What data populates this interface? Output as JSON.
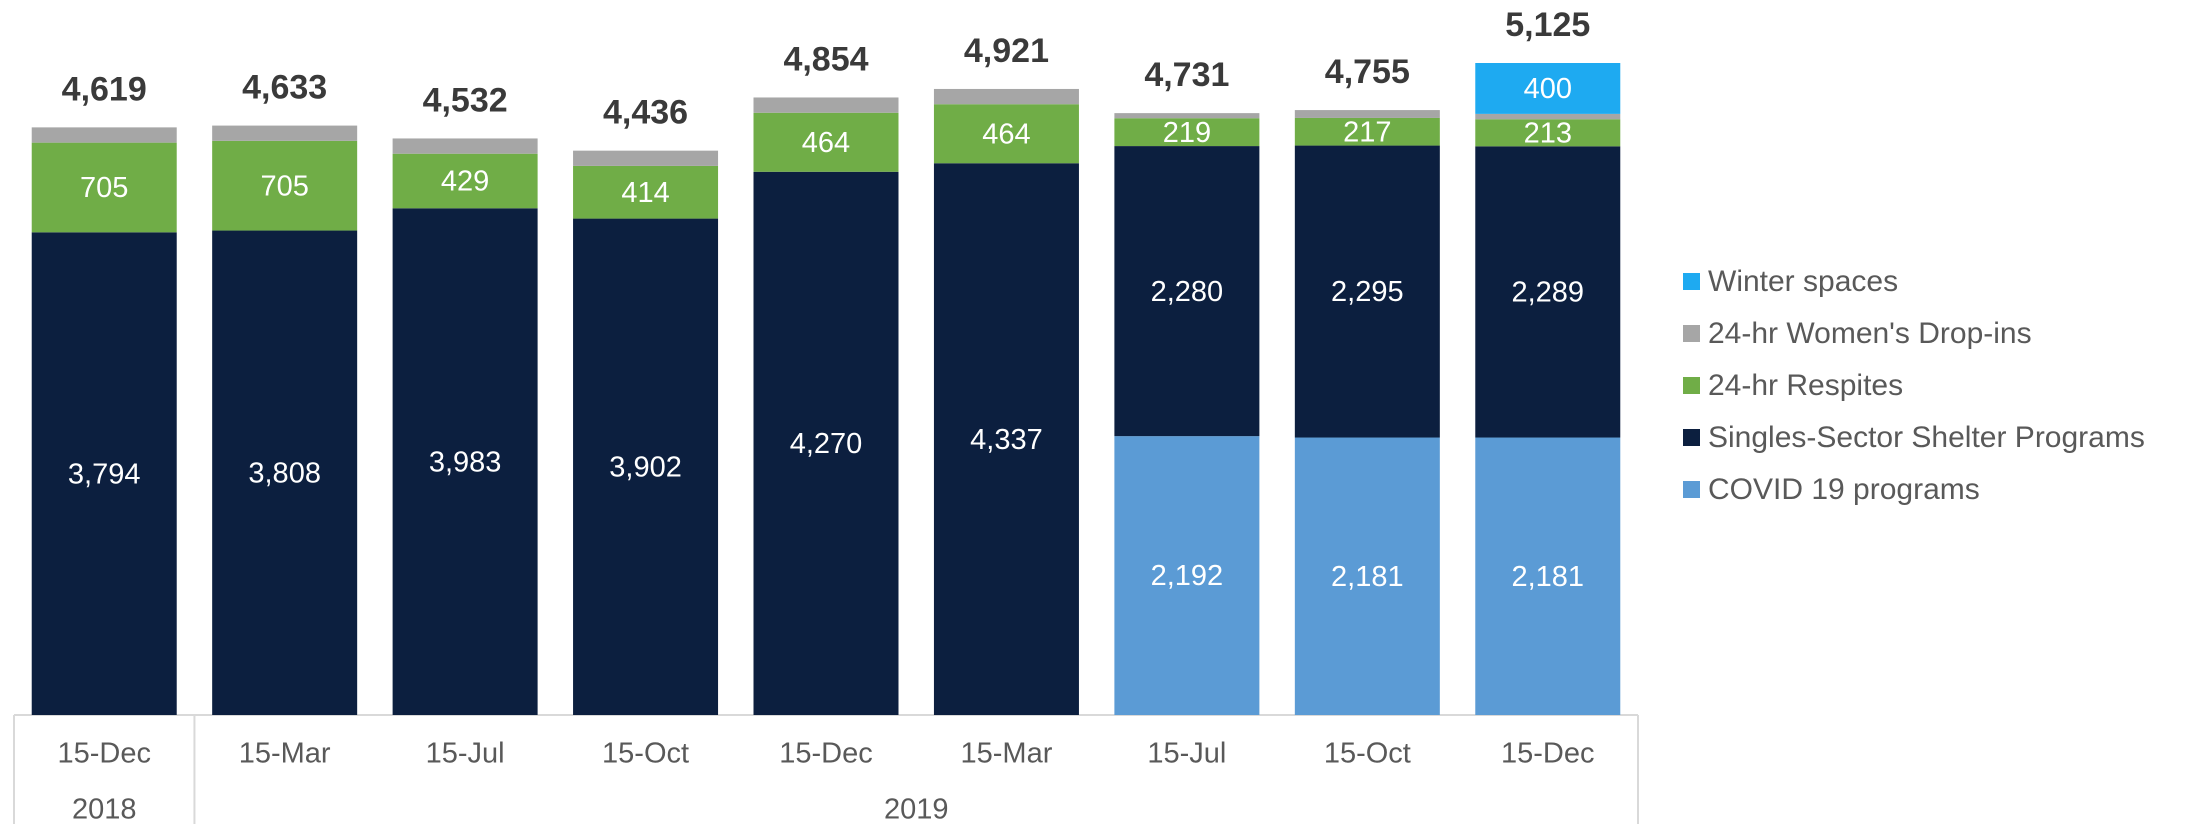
{
  "chart_data": {
    "type": "stacked_bar",
    "categories": [
      "15-Dec",
      "15-Mar",
      "15-Jul",
      "15-Oct",
      "15-Dec",
      "15-Mar",
      "15-Jul",
      "15-Oct",
      "15-Dec"
    ],
    "x_groups": [
      {
        "label": "2018",
        "span": 1
      },
      {
        "label": "2019",
        "span": 8
      }
    ],
    "series": [
      {
        "name": "COVID 19 programs",
        "color": "#5b9bd5",
        "values": [
          null,
          null,
          null,
          null,
          null,
          null,
          2192,
          2181,
          2181
        ],
        "value_labels": [
          null,
          null,
          null,
          null,
          null,
          null,
          "2,192",
          "2,181",
          "2,181"
        ]
      },
      {
        "name": "Singles-Sector Shelter Programs",
        "color": "#0c1f3f",
        "values": [
          3794,
          3808,
          3983,
          3902,
          4270,
          4337,
          2280,
          2295,
          2289
        ],
        "value_labels": [
          "3,794",
          "3,808",
          "3,983",
          "3,902",
          "4,270",
          "4,337",
          "2,280",
          "2,295",
          "2,289"
        ]
      },
      {
        "name": "24-hr Respites",
        "color": "#70ad47",
        "values": [
          705,
          705,
          429,
          414,
          464,
          464,
          219,
          217,
          213
        ],
        "value_labels": [
          "705",
          "705",
          "429",
          "414",
          "464",
          "464",
          "219",
          "217",
          "213"
        ]
      },
      {
        "name": "24-hr Women's Drop-ins",
        "color": "#a6a6a6",
        "values": [
          120,
          120,
          120,
          120,
          120,
          120,
          40,
          62,
          42
        ]
      },
      {
        "name": "Winter spaces",
        "color": "#1eaaf1",
        "values": [
          null,
          null,
          null,
          null,
          null,
          null,
          null,
          null,
          400
        ],
        "value_labels": [
          null,
          null,
          null,
          null,
          null,
          null,
          null,
          null,
          "400"
        ]
      }
    ],
    "totals": [
      4619,
      4633,
      4532,
      4436,
      4854,
      4921,
      4731,
      4755,
      5125
    ],
    "total_labels": [
      "4,619",
      "4,633",
      "4,532",
      "4,436",
      "4,854",
      "4,921",
      "4,731",
      "4,755",
      "5,125"
    ],
    "legend": "right"
  }
}
